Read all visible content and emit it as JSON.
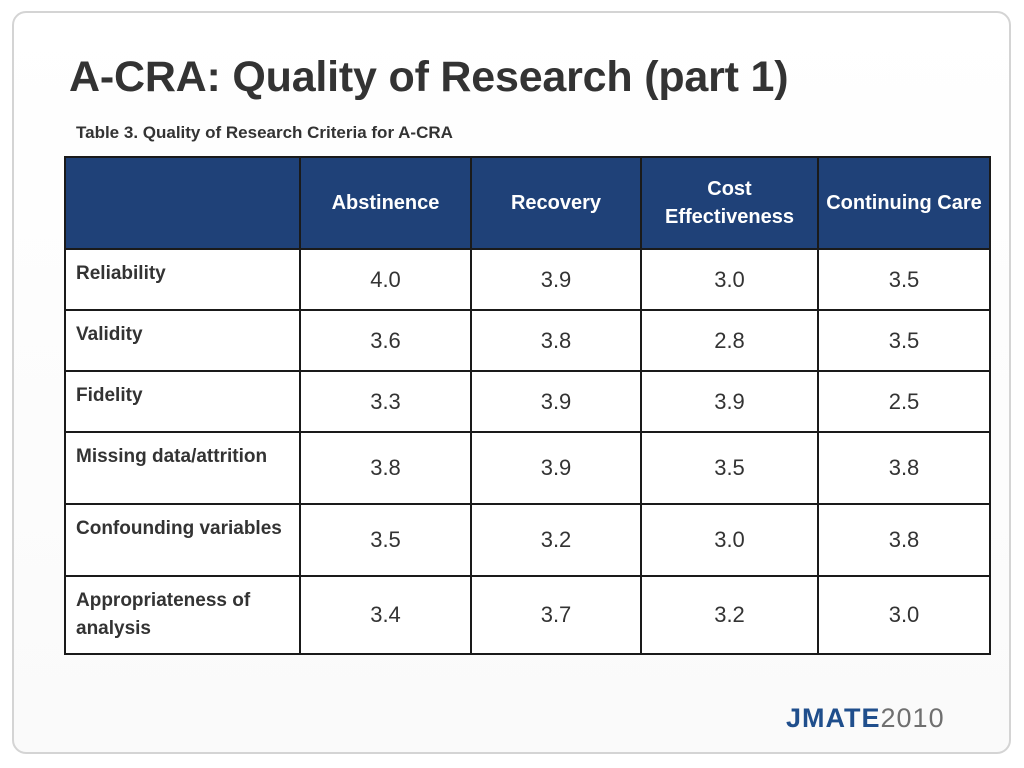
{
  "slide": {
    "title": "A-CRA: Quality of Research (part 1)",
    "caption": "Table 3. Quality of Research Criteria for A-CRA"
  },
  "table": {
    "corner": "",
    "columns": [
      "Abstinence",
      "Recovery",
      "Cost Effectiveness",
      "Continuing Care"
    ],
    "rows": [
      {
        "label": "Reliability",
        "values": [
          "4.0",
          "3.9",
          "3.0",
          "3.5"
        ]
      },
      {
        "label": "Validity",
        "values": [
          "3.6",
          "3.8",
          "2.8",
          "3.5"
        ]
      },
      {
        "label": "Fidelity",
        "values": [
          "3.3",
          "3.9",
          "3.9",
          "2.5"
        ]
      },
      {
        "label": "Missing data/attrition",
        "values": [
          "3.8",
          "3.9",
          "3.5",
          "3.8"
        ]
      },
      {
        "label": "Confounding variables",
        "values": [
          "3.5",
          "3.2",
          "3.0",
          "3.8"
        ]
      },
      {
        "label": "Appropriateness of analysis",
        "values": [
          "3.4",
          "3.7",
          "3.2",
          "3.0"
        ]
      }
    ]
  },
  "logo": {
    "brand": "JMATE",
    "year": "2010",
    "brand_color": "#1f4e8c",
    "year_color": "#6f6f6f"
  },
  "colors": {
    "header_bg": "#1f4178",
    "header_text": "#ffffff",
    "body_text": "#333333"
  }
}
